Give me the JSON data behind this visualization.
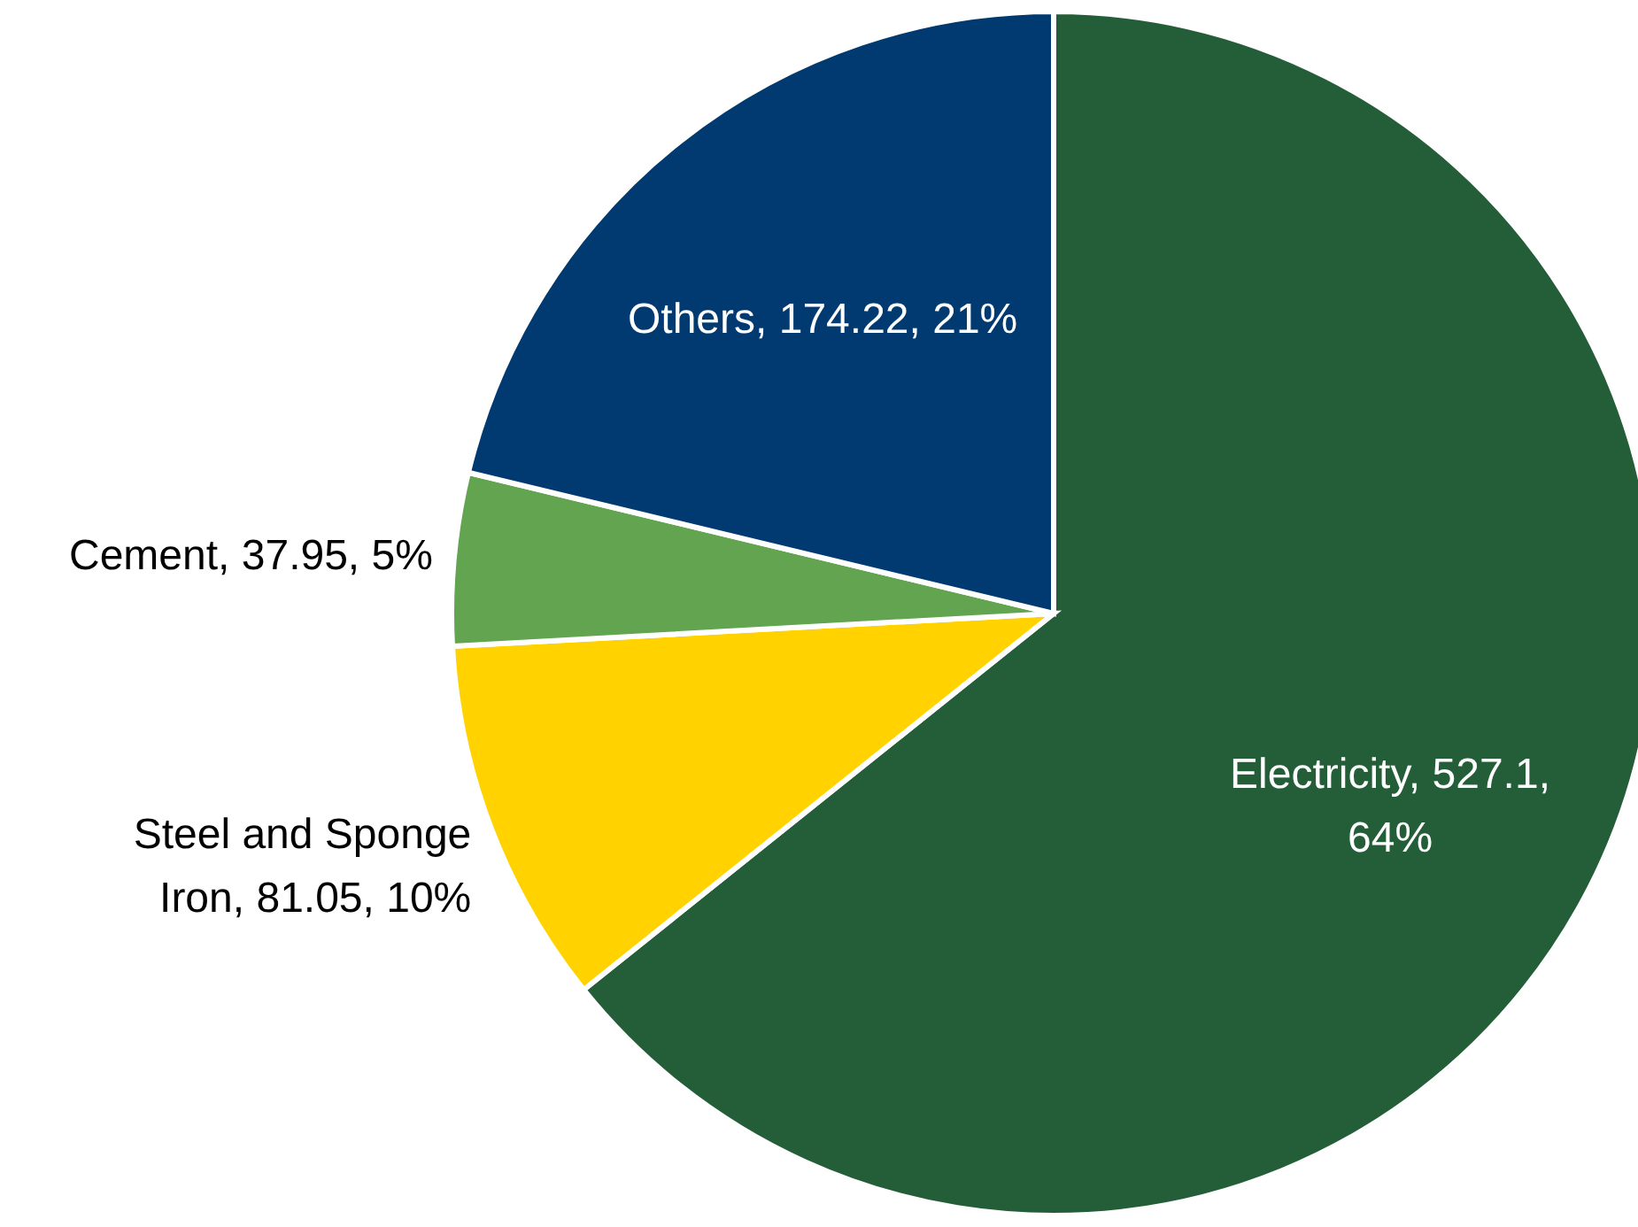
{
  "chart_data": {
    "type": "pie",
    "categories": [
      "Electricity",
      "Steel and Sponge Iron",
      "Cement",
      "Others"
    ],
    "values": [
      527.1,
      81.05,
      37.95,
      174.22
    ],
    "value_labels": [
      "527.1, 64%",
      "81.05, 10%",
      "37.95, 5%",
      "174.22, 21%"
    ],
    "colors": [
      "#245e38",
      "#ffd200",
      "#62a44f",
      "#003a70"
    ]
  }
}
